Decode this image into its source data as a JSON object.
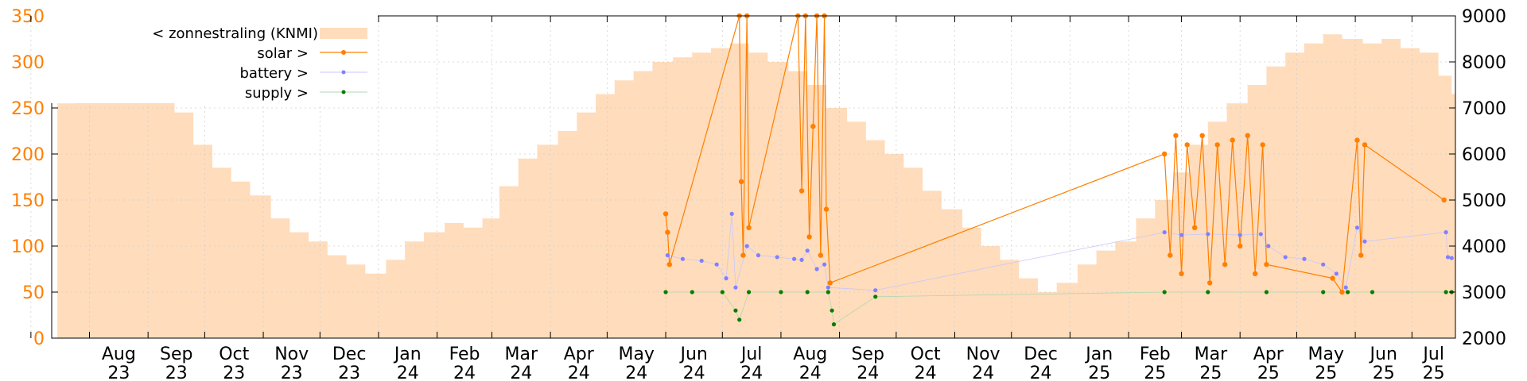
{
  "chart_data": {
    "type": "line",
    "left_axis": {
      "ylim": [
        0,
        350
      ],
      "ticks": [
        0,
        50,
        100,
        150,
        200,
        250,
        300,
        350
      ],
      "color": "#ff7f00"
    },
    "right_axis": {
      "ylim": [
        2000,
        9000
      ],
      "ticks": [
        2000,
        3000,
        4000,
        5000,
        6000,
        7000,
        8000,
        9000
      ]
    },
    "x_ticks": [
      {
        "month": "Aug",
        "year": "23"
      },
      {
        "month": "Sep",
        "year": "23"
      },
      {
        "month": "Oct",
        "year": "23"
      },
      {
        "month": "Nov",
        "year": "23"
      },
      {
        "month": "Dec",
        "year": "23"
      },
      {
        "month": "Jan",
        "year": "24"
      },
      {
        "month": "Feb",
        "year": "24"
      },
      {
        "month": "Mar",
        "year": "24"
      },
      {
        "month": "Apr",
        "year": "24"
      },
      {
        "month": "May",
        "year": "24"
      },
      {
        "month": "Jun",
        "year": "24"
      },
      {
        "month": "Jul",
        "year": "24"
      },
      {
        "month": "Aug",
        "year": "24"
      },
      {
        "month": "Sep",
        "year": "24"
      },
      {
        "month": "Oct",
        "year": "24"
      },
      {
        "month": "Nov",
        "year": "24"
      },
      {
        "month": "Dec",
        "year": "24"
      },
      {
        "month": "Jan",
        "year": "25"
      },
      {
        "month": "Feb",
        "year": "25"
      },
      {
        "month": "Mar",
        "year": "25"
      },
      {
        "month": "Apr",
        "year": "25"
      },
      {
        "month": "May",
        "year": "25"
      },
      {
        "month": "Jun",
        "year": "25"
      },
      {
        "month": "Jul",
        "year": "25"
      }
    ],
    "grid": true,
    "legend_position": "top-left",
    "series": [
      {
        "name": "< zonnestraling (KNMI)",
        "style": "area",
        "axis": "right",
        "color": "#ffdcbb",
        "points": [
          [
            "2023-07-15",
            7100
          ],
          [
            "2023-07-25",
            7400
          ],
          [
            "2023-08-05",
            7800
          ],
          [
            "2023-08-15",
            7500
          ],
          [
            "2023-08-25",
            7600
          ],
          [
            "2023-09-05",
            7200
          ],
          [
            "2023-09-15",
            6900
          ],
          [
            "2023-09-25",
            6200
          ],
          [
            "2023-10-05",
            5700
          ],
          [
            "2023-10-15",
            5400
          ],
          [
            "2023-10-25",
            5100
          ],
          [
            "2023-11-05",
            4600
          ],
          [
            "2023-11-15",
            4300
          ],
          [
            "2023-11-25",
            4100
          ],
          [
            "2023-12-05",
            3800
          ],
          [
            "2023-12-15",
            3600
          ],
          [
            "2023-12-25",
            3400
          ],
          [
            "2024-01-05",
            3700
          ],
          [
            "2024-01-15",
            4100
          ],
          [
            "2024-01-25",
            4300
          ],
          [
            "2024-02-05",
            4500
          ],
          [
            "2024-02-15",
            4400
          ],
          [
            "2024-02-25",
            4600
          ],
          [
            "2024-03-05",
            5300
          ],
          [
            "2024-03-15",
            5900
          ],
          [
            "2024-03-25",
            6200
          ],
          [
            "2024-04-05",
            6500
          ],
          [
            "2024-04-15",
            6900
          ],
          [
            "2024-04-25",
            7300
          ],
          [
            "2024-05-05",
            7600
          ],
          [
            "2024-05-15",
            7800
          ],
          [
            "2024-05-25",
            8000
          ],
          [
            "2024-06-05",
            8100
          ],
          [
            "2024-06-15",
            8200
          ],
          [
            "2024-06-25",
            8300
          ],
          [
            "2024-07-05",
            8400
          ],
          [
            "2024-07-15",
            8200
          ],
          [
            "2024-07-25",
            8000
          ],
          [
            "2024-08-05",
            7800
          ],
          [
            "2024-08-15",
            7500
          ],
          [
            "2024-08-25",
            7000
          ],
          [
            "2024-09-05",
            6700
          ],
          [
            "2024-09-15",
            6300
          ],
          [
            "2024-09-25",
            6000
          ],
          [
            "2024-10-05",
            5700
          ],
          [
            "2024-10-15",
            5200
          ],
          [
            "2024-10-25",
            4800
          ],
          [
            "2024-11-05",
            4400
          ],
          [
            "2024-11-15",
            4000
          ],
          [
            "2024-11-25",
            3700
          ],
          [
            "2024-12-05",
            3300
          ],
          [
            "2024-12-15",
            3000
          ],
          [
            "2024-12-25",
            3200
          ],
          [
            "2025-01-05",
            3600
          ],
          [
            "2025-01-15",
            3900
          ],
          [
            "2025-01-25",
            4100
          ],
          [
            "2025-02-05",
            4600
          ],
          [
            "2025-02-15",
            5000
          ],
          [
            "2025-02-25",
            5600
          ],
          [
            "2025-03-05",
            6200
          ],
          [
            "2025-03-15",
            6700
          ],
          [
            "2025-03-25",
            7100
          ],
          [
            "2025-04-05",
            7500
          ],
          [
            "2025-04-15",
            7900
          ],
          [
            "2025-04-25",
            8200
          ],
          [
            "2025-05-05",
            8400
          ],
          [
            "2025-05-15",
            8600
          ],
          [
            "2025-05-25",
            8500
          ],
          [
            "2025-06-05",
            8400
          ],
          [
            "2025-06-15",
            8500
          ],
          [
            "2025-06-25",
            8300
          ],
          [
            "2025-07-05",
            8200
          ],
          [
            "2025-07-15",
            7700
          ],
          [
            "2025-07-22",
            7300
          ]
        ]
      },
      {
        "name": "solar >",
        "style": "linespoints",
        "axis": "left",
        "color": "#ff7f00",
        "points": [
          [
            "2024-06-01",
            135
          ],
          [
            "2024-06-02",
            115
          ],
          [
            "2024-06-03",
            80
          ],
          [
            "2024-07-10",
            350
          ],
          [
            "2024-07-11",
            170
          ],
          [
            "2024-07-12",
            90
          ],
          [
            "2024-07-14",
            350
          ],
          [
            "2024-07-15",
            120
          ],
          [
            "2024-08-10",
            350
          ],
          [
            "2024-08-12",
            160
          ],
          [
            "2024-08-14",
            350
          ],
          [
            "2024-08-16",
            110
          ],
          [
            "2024-08-18",
            230
          ],
          [
            "2024-08-20",
            350
          ],
          [
            "2024-08-22",
            90
          ],
          [
            "2024-08-24",
            350
          ],
          [
            "2024-08-25",
            140
          ],
          [
            "2024-08-27",
            60
          ],
          [
            "2025-02-20",
            200
          ],
          [
            "2025-02-23",
            90
          ],
          [
            "2025-02-26",
            220
          ],
          [
            "2025-03-01",
            70
          ],
          [
            "2025-03-04",
            210
          ],
          [
            "2025-03-08",
            120
          ],
          [
            "2025-03-12",
            220
          ],
          [
            "2025-03-16",
            60
          ],
          [
            "2025-03-20",
            210
          ],
          [
            "2025-03-24",
            80
          ],
          [
            "2025-03-28",
            215
          ],
          [
            "2025-04-01",
            100
          ],
          [
            "2025-04-05",
            220
          ],
          [
            "2025-04-09",
            70
          ],
          [
            "2025-04-13",
            210
          ],
          [
            "2025-04-15",
            80
          ],
          [
            "2025-05-20",
            65
          ],
          [
            "2025-05-25",
            50
          ],
          [
            "2025-06-02",
            215
          ],
          [
            "2025-06-04",
            90
          ],
          [
            "2025-06-06",
            210
          ],
          [
            "2025-07-18",
            150
          ]
        ]
      },
      {
        "name": "battery >",
        "style": "points",
        "axis": "left",
        "color": "#8080ff",
        "points": [
          [
            "2024-06-02",
            90
          ],
          [
            "2024-06-10",
            86
          ],
          [
            "2024-06-20",
            84
          ],
          [
            "2024-06-28",
            80
          ],
          [
            "2024-07-03",
            65
          ],
          [
            "2024-07-06",
            135
          ],
          [
            "2024-07-08",
            55
          ],
          [
            "2024-07-14",
            100
          ],
          [
            "2024-07-20",
            90
          ],
          [
            "2024-07-30",
            88
          ],
          [
            "2024-08-08",
            86
          ],
          [
            "2024-08-12",
            85
          ],
          [
            "2024-08-15",
            95
          ],
          [
            "2024-08-20",
            75
          ],
          [
            "2024-08-24",
            80
          ],
          [
            "2024-08-26",
            55
          ],
          [
            "2024-09-20",
            52
          ],
          [
            "2025-02-20",
            115
          ],
          [
            "2025-03-01",
            112
          ],
          [
            "2025-03-15",
            113
          ],
          [
            "2025-04-01",
            112
          ],
          [
            "2025-04-12",
            113
          ],
          [
            "2025-04-16",
            100
          ],
          [
            "2025-04-25",
            88
          ],
          [
            "2025-05-05",
            86
          ],
          [
            "2025-05-15",
            80
          ],
          [
            "2025-05-22",
            70
          ],
          [
            "2025-05-27",
            55
          ],
          [
            "2025-06-02",
            120
          ],
          [
            "2025-06-06",
            105
          ],
          [
            "2025-07-19",
            115
          ],
          [
            "2025-07-20",
            88
          ],
          [
            "2025-07-22",
            87
          ]
        ]
      },
      {
        "name": "supply >",
        "style": "points",
        "axis": "left",
        "color": "#007f00",
        "points": [
          [
            "2024-06-01",
            50
          ],
          [
            "2024-06-15",
            50
          ],
          [
            "2024-07-01",
            50
          ],
          [
            "2024-07-08",
            30
          ],
          [
            "2024-07-10",
            20
          ],
          [
            "2024-07-15",
            50
          ],
          [
            "2024-08-01",
            50
          ],
          [
            "2024-08-15",
            50
          ],
          [
            "2024-08-26",
            50
          ],
          [
            "2024-08-28",
            30
          ],
          [
            "2024-08-29",
            15
          ],
          [
            "2024-09-20",
            45
          ],
          [
            "2025-02-20",
            50
          ],
          [
            "2025-03-15",
            50
          ],
          [
            "2025-04-15",
            50
          ],
          [
            "2025-05-15",
            50
          ],
          [
            "2025-05-28",
            50
          ],
          [
            "2025-06-10",
            50
          ],
          [
            "2025-07-19",
            50
          ],
          [
            "2025-07-22",
            50
          ]
        ]
      }
    ]
  },
  "legend": {
    "zonnestraling": "< zonnestraling (KNMI)",
    "solar": "solar >",
    "battery": "battery >",
    "supply": "supply >"
  }
}
